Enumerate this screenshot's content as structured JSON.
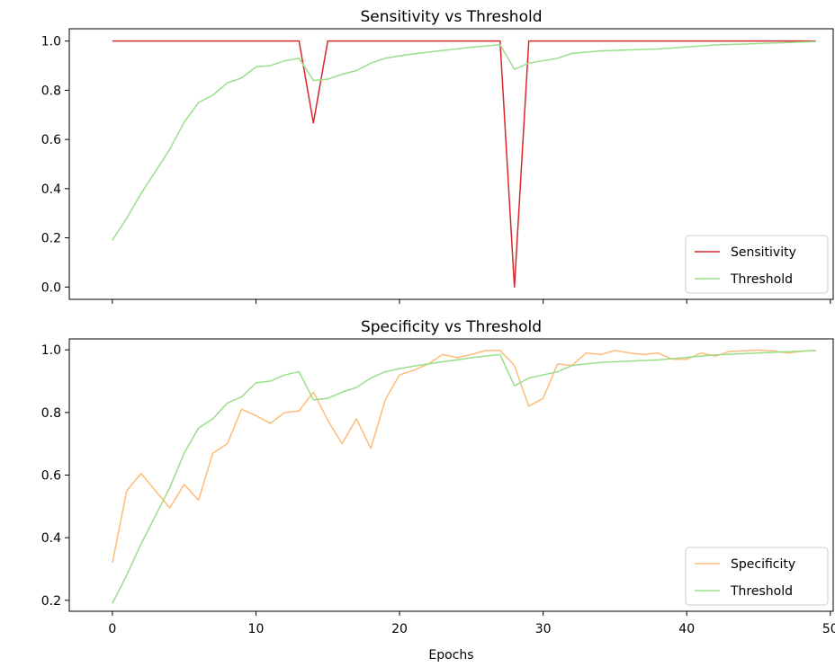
{
  "chart_data": [
    {
      "type": "line",
      "title": "Sensitivity vs Threshold",
      "xlabel": "",
      "ylabel": "",
      "xlim": [
        -3,
        50.2
      ],
      "ylim": [
        -0.05,
        1.05
      ],
      "xticks": [
        0,
        10,
        20,
        30,
        40,
        50
      ],
      "xtick_labels_visible": false,
      "yticks": [
        0.0,
        0.2,
        0.4,
        0.6,
        0.8,
        1.0
      ],
      "ytick_labels": [
        "0.0",
        "0.2",
        "0.4",
        "0.6",
        "0.8",
        "1.0"
      ],
      "grid": false,
      "legend_position": "lower-right",
      "x": [
        0,
        1,
        2,
        3,
        4,
        5,
        6,
        7,
        8,
        9,
        10,
        11,
        12,
        13,
        14,
        15,
        16,
        17,
        18,
        19,
        20,
        21,
        22,
        23,
        24,
        25,
        26,
        27,
        28,
        29,
        30,
        31,
        32,
        33,
        34,
        35,
        36,
        37,
        38,
        39,
        40,
        41,
        42,
        43,
        44,
        45,
        46,
        47,
        48,
        49
      ],
      "series": [
        {
          "name": "Sensitivity",
          "color": "#d62728",
          "values": [
            1,
            1,
            1,
            1,
            1,
            1,
            1,
            1,
            1,
            1,
            1,
            1,
            1,
            1,
            0.667,
            1,
            1,
            1,
            1,
            1,
            1,
            1,
            1,
            1,
            1,
            1,
            1,
            1,
            0,
            1,
            1,
            1,
            1,
            1,
            1,
            1,
            1,
            1,
            1,
            1,
            1,
            1,
            1,
            1,
            1,
            1,
            1,
            1,
            1,
            1
          ]
        },
        {
          "name": "Threshold",
          "color": "#98df8a",
          "values": [
            0.19,
            0.28,
            0.38,
            0.47,
            0.56,
            0.67,
            0.75,
            0.78,
            0.83,
            0.85,
            0.895,
            0.9,
            0.92,
            0.93,
            0.84,
            0.845,
            0.865,
            0.88,
            0.91,
            0.93,
            0.94,
            0.948,
            0.955,
            0.962,
            0.968,
            0.975,
            0.98,
            0.985,
            0.885,
            0.91,
            0.92,
            0.93,
            0.95,
            0.955,
            0.96,
            0.962,
            0.964,
            0.966,
            0.968,
            0.972,
            0.976,
            0.98,
            0.984,
            0.986,
            0.988,
            0.99,
            0.992,
            0.994,
            0.996,
            0.998
          ]
        }
      ]
    },
    {
      "type": "line",
      "title": "Specificity vs Threshold",
      "xlabel": "Epochs",
      "ylabel": "",
      "xlim": [
        -3,
        50.2
      ],
      "ylim": [
        0.165,
        1.035
      ],
      "xticks": [
        0,
        10,
        20,
        30,
        40,
        50
      ],
      "xtick_labels": [
        "0",
        "10",
        "20",
        "30",
        "40",
        "50"
      ],
      "yticks": [
        0.2,
        0.4,
        0.6,
        0.8,
        1.0
      ],
      "ytick_labels": [
        "0.2",
        "0.4",
        "0.6",
        "0.8",
        "1.0"
      ],
      "grid": false,
      "legend_position": "lower-right",
      "x": [
        0,
        1,
        2,
        3,
        4,
        5,
        6,
        7,
        8,
        9,
        10,
        11,
        12,
        13,
        14,
        15,
        16,
        17,
        18,
        19,
        20,
        21,
        22,
        23,
        24,
        25,
        26,
        27,
        28,
        29,
        30,
        31,
        32,
        33,
        34,
        35,
        36,
        37,
        38,
        39,
        40,
        41,
        42,
        43,
        44,
        45,
        46,
        47,
        48,
        49
      ],
      "series": [
        {
          "name": "Specificity",
          "color": "#ffbb78",
          "values": [
            0.32,
            0.55,
            0.605,
            0.55,
            0.495,
            0.57,
            0.52,
            0.67,
            0.7,
            0.81,
            0.79,
            0.765,
            0.8,
            0.805,
            0.865,
            0.775,
            0.7,
            0.78,
            0.685,
            0.84,
            0.92,
            0.935,
            0.955,
            0.985,
            0.975,
            0.985,
            0.998,
            0.998,
            0.95,
            0.82,
            0.845,
            0.955,
            0.95,
            0.99,
            0.985,
            0.998,
            0.99,
            0.985,
            0.99,
            0.97,
            0.97,
            0.99,
            0.98,
            0.995,
            0.997,
            0.999,
            0.997,
            0.99,
            0.995,
            0.998
          ]
        },
        {
          "name": "Threshold",
          "color": "#98df8a",
          "values": [
            0.19,
            0.28,
            0.38,
            0.47,
            0.56,
            0.67,
            0.75,
            0.78,
            0.83,
            0.85,
            0.895,
            0.9,
            0.92,
            0.93,
            0.84,
            0.845,
            0.865,
            0.88,
            0.91,
            0.93,
            0.94,
            0.948,
            0.955,
            0.962,
            0.968,
            0.975,
            0.98,
            0.985,
            0.885,
            0.91,
            0.92,
            0.93,
            0.95,
            0.955,
            0.96,
            0.962,
            0.964,
            0.966,
            0.968,
            0.972,
            0.976,
            0.98,
            0.984,
            0.986,
            0.988,
            0.99,
            0.992,
            0.994,
            0.996,
            0.998
          ]
        }
      ]
    }
  ]
}
